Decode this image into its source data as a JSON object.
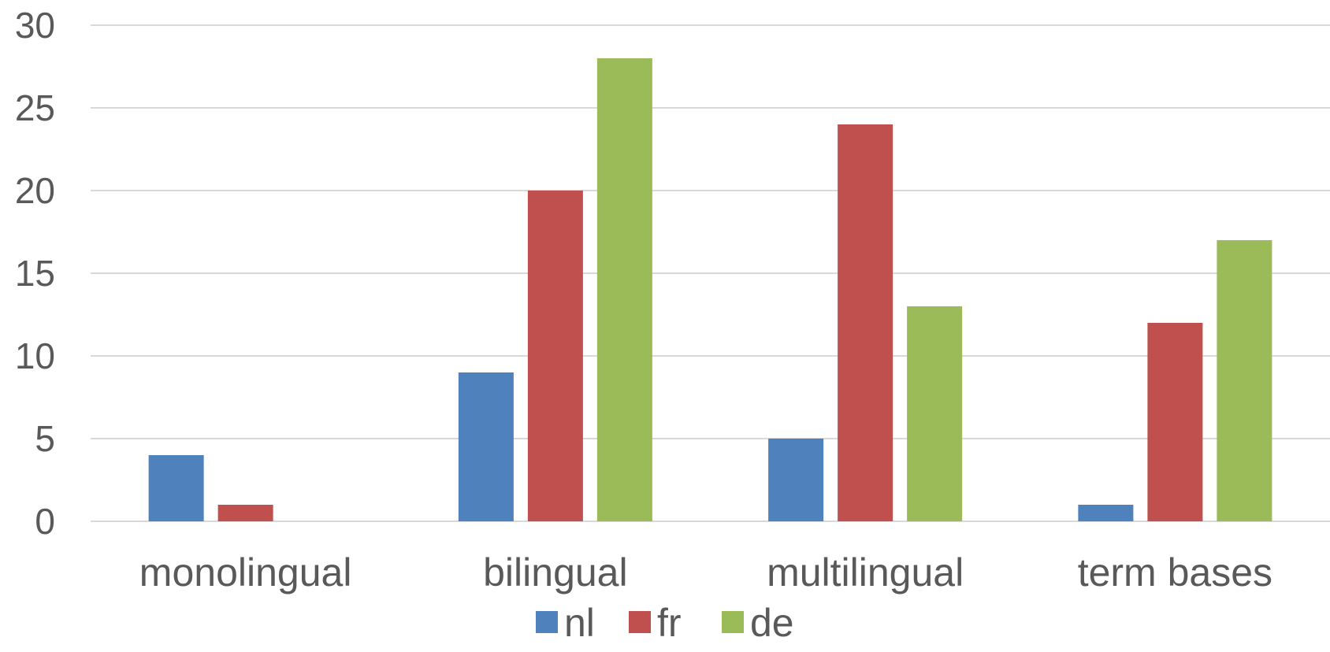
{
  "chart_data": {
    "type": "bar",
    "categories": [
      "monolingual",
      "bilingual",
      "multilingual",
      "term bases"
    ],
    "series": [
      {
        "name": "nl",
        "values": [
          4,
          9,
          5,
          1
        ],
        "color": "#4f81bd"
      },
      {
        "name": "fr",
        "values": [
          1,
          20,
          24,
          12
        ],
        "color": "#c0504d"
      },
      {
        "name": "de",
        "values": [
          0,
          28,
          13,
          17
        ],
        "color": "#9bbb59"
      }
    ],
    "ylim": [
      0,
      30
    ],
    "yticks": [
      0,
      5,
      10,
      15,
      20,
      25,
      30
    ],
    "grid": true,
    "legend": "bottom",
    "title": "",
    "xlabel": "",
    "ylabel": ""
  }
}
